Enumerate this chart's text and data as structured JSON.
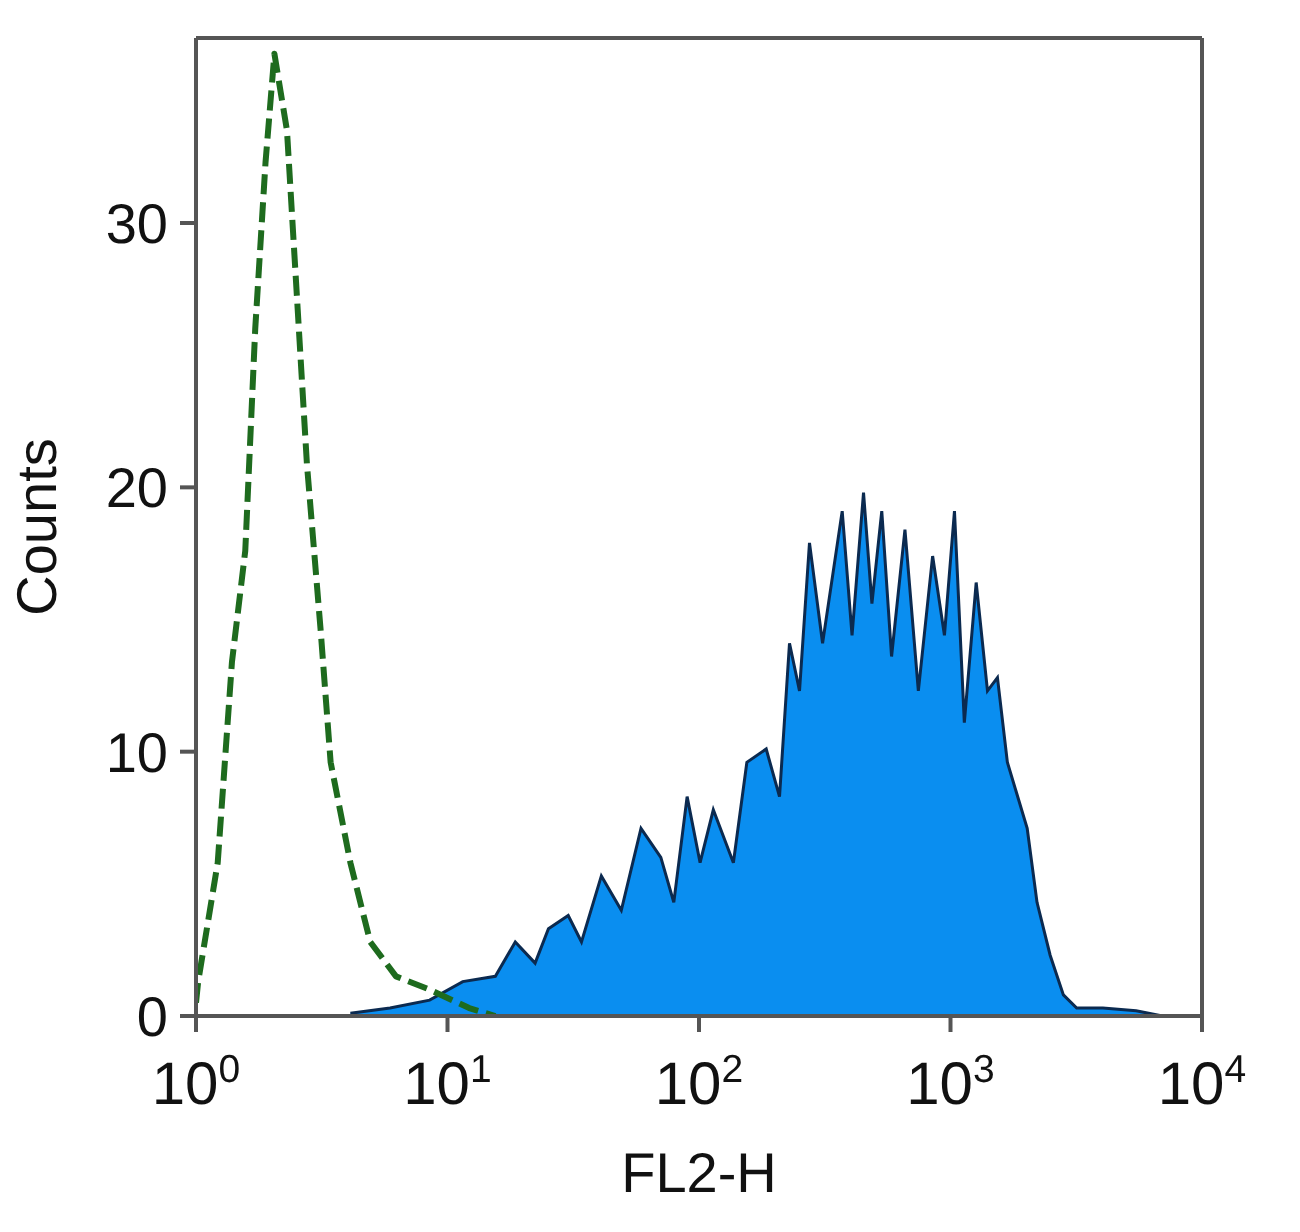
{
  "chart_data": {
    "type": "area",
    "xlabel": "FL2-H",
    "ylabel": "Counts",
    "log": "x",
    "grid": false,
    "legend": false,
    "marker": "none",
    "xlim": [
      1,
      10000
    ],
    "xticks": [
      {
        "value": 1,
        "label": "10$^{0}$"
      },
      {
        "value": 10,
        "label": "10$^{1}$"
      },
      {
        "value": 100,
        "label": "10$^{2}$"
      },
      {
        "value": 1000,
        "label": "10$^{3}$"
      },
      {
        "value": 10000,
        "label": "10$^{4}$"
      }
    ],
    "ylim": [
      0,
      37
    ],
    "yticks": [
      0,
      10,
      20,
      30
    ],
    "series": [
      {
        "color": "#0a8ef0",
        "x": [
          4.11,
          5.91,
          8.49,
          11.5,
          15.5,
          18.6,
          22.3,
          25.2,
          30.2,
          34.1,
          40.9,
          49.1,
          58.8,
          70.5,
          79.4,
          89.7,
          101,
          114,
          137,
          155,
          185,
          209,
          229,
          251,
          275,
          310,
          371,
          406,
          451,
          487,
          533,
          583,
          659,
          745,
          849,
          946,
          1037,
          1135,
          1265,
          1403,
          1537,
          1683,
          2018,
          2208,
          2490,
          2811,
          3175,
          4036,
          5470,
          6960
        ],
        "values": [
          0.1,
          0.3,
          0.6,
          1.3,
          1.5,
          2.8,
          2.0,
          3.3,
          3.8,
          2.8,
          5.3,
          4.0,
          7.1,
          6.0,
          4.3,
          8.3,
          5.8,
          7.8,
          5.8,
          9.6,
          10.1,
          8.3,
          14.1,
          12.3,
          17.9,
          14.1,
          19.1,
          14.4,
          19.8,
          15.6,
          19.1,
          13.6,
          18.4,
          12.3,
          17.4,
          14.4,
          19.1,
          11.1,
          16.4,
          12.3,
          12.8,
          9.6,
          7.1,
          4.3,
          2.3,
          0.8,
          0.3,
          0.3,
          0.2,
          0
        ]
      },
      {
        "type": "line",
        "color": "#1e6b1e",
        "line_style": "dashed",
        "x": [
          1,
          1.02,
          1.22,
          1.39,
          1.57,
          1.72,
          1.89,
          2.05,
          2.3,
          2.52,
          2.76,
          3.13,
          3.43,
          4.11,
          4.93,
          6.24,
          8.49,
          12.2,
          15.5
        ],
        "values": [
          0.5,
          1.3,
          5.8,
          13.4,
          17.6,
          26,
          32.3,
          36.4,
          33.5,
          27.2,
          20.9,
          14.6,
          9.6,
          5.8,
          2.8,
          1.5,
          1,
          0.3,
          0
        ]
      }
    ]
  }
}
